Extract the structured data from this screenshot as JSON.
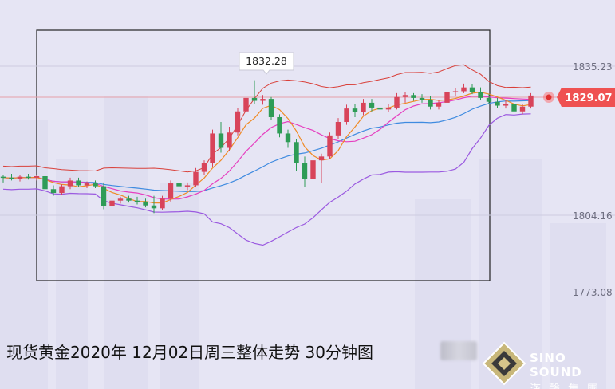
{
  "chart_data": {
    "type": "candlestick",
    "title": "现货黄金2020年 12月02日周三整体走势 30分钟图",
    "y_axis_labels": [
      "1835.23",
      "1804.16",
      "1773.08"
    ],
    "ylim": [
      1790,
      1842
    ],
    "max_label": "1832.28",
    "last_price": "1829.07",
    "candles": [
      [
        1812.2,
        1812.6,
        1811.0,
        1812.0
      ],
      [
        1812.0,
        1812.8,
        1811.4,
        1811.8
      ],
      [
        1811.8,
        1812.6,
        1811.2,
        1812.2
      ],
      [
        1812.2,
        1812.8,
        1811.6,
        1812.0
      ],
      [
        1812.0,
        1812.6,
        1811.4,
        1812.3
      ],
      [
        1812.3,
        1812.8,
        1809.0,
        1809.6
      ],
      [
        1809.6,
        1810.4,
        1808.2,
        1808.8
      ],
      [
        1808.8,
        1810.6,
        1808.4,
        1810.2
      ],
      [
        1810.2,
        1812.0,
        1809.6,
        1811.4
      ],
      [
        1811.4,
        1812.0,
        1810.0,
        1810.4
      ],
      [
        1810.4,
        1811.2,
        1809.8,
        1810.8
      ],
      [
        1810.8,
        1811.4,
        1809.8,
        1810.2
      ],
      [
        1810.2,
        1811.0,
        1805.4,
        1806.0
      ],
      [
        1806.0,
        1808.0,
        1805.4,
        1807.2
      ],
      [
        1807.2,
        1808.0,
        1806.6,
        1807.6
      ],
      [
        1807.6,
        1808.2,
        1806.8,
        1807.2
      ],
      [
        1807.2,
        1808.0,
        1806.4,
        1807.0
      ],
      [
        1807.0,
        1807.6,
        1805.8,
        1806.2
      ],
      [
        1806.2,
        1808.2,
        1804.6,
        1805.6
      ],
      [
        1805.6,
        1808.2,
        1805.2,
        1807.6
      ],
      [
        1807.6,
        1811.4,
        1807.0,
        1810.8
      ],
      [
        1810.8,
        1812.0,
        1809.8,
        1810.2
      ],
      [
        1810.2,
        1811.0,
        1809.4,
        1810.4
      ],
      [
        1810.4,
        1814.0,
        1810.0,
        1813.2
      ],
      [
        1813.2,
        1815.6,
        1812.6,
        1815.0
      ],
      [
        1815.0,
        1822.0,
        1814.2,
        1821.2
      ],
      [
        1821.2,
        1823.6,
        1817.2,
        1818.2
      ],
      [
        1818.2,
        1822.6,
        1817.6,
        1821.4
      ],
      [
        1821.4,
        1826.6,
        1820.8,
        1825.8
      ],
      [
        1825.8,
        1829.2,
        1825.2,
        1828.6
      ],
      [
        1828.6,
        1832.3,
        1827.4,
        1828.0
      ],
      [
        1828.0,
        1829.2,
        1827.2,
        1828.4
      ],
      [
        1828.4,
        1828.8,
        1824.0,
        1824.6
      ],
      [
        1824.6,
        1825.2,
        1820.4,
        1821.2
      ],
      [
        1821.2,
        1822.0,
        1818.2,
        1819.4
      ],
      [
        1819.4,
        1820.0,
        1813.4,
        1815.0
      ],
      [
        1815.0,
        1816.4,
        1810.0,
        1811.8
      ],
      [
        1811.8,
        1816.6,
        1810.6,
        1815.6
      ],
      [
        1815.6,
        1817.0,
        1810.8,
        1816.4
      ],
      [
        1816.4,
        1821.4,
        1815.8,
        1820.8
      ],
      [
        1820.8,
        1824.4,
        1820.0,
        1823.6
      ],
      [
        1823.6,
        1827.2,
        1823.0,
        1826.4
      ],
      [
        1826.4,
        1827.4,
        1824.6,
        1825.6
      ],
      [
        1825.6,
        1828.4,
        1825.0,
        1827.6
      ],
      [
        1827.6,
        1828.4,
        1825.8,
        1826.6
      ],
      [
        1826.6,
        1827.6,
        1825.0,
        1826.2
      ],
      [
        1826.2,
        1827.4,
        1825.6,
        1826.6
      ],
      [
        1826.6,
        1829.6,
        1826.2,
        1828.8
      ],
      [
        1828.8,
        1829.8,
        1827.6,
        1829.2
      ],
      [
        1829.2,
        1829.6,
        1828.0,
        1828.6
      ],
      [
        1828.6,
        1829.4,
        1827.6,
        1828.2
      ],
      [
        1828.2,
        1829.0,
        1826.2,
        1826.8
      ],
      [
        1826.8,
        1828.2,
        1826.2,
        1827.6
      ],
      [
        1827.6,
        1830.0,
        1827.2,
        1829.8
      ],
      [
        1829.8,
        1830.6,
        1829.0,
        1830.0
      ],
      [
        1830.0,
        1831.6,
        1829.6,
        1830.8
      ],
      [
        1830.8,
        1831.4,
        1829.4,
        1829.8
      ],
      [
        1829.8,
        1830.8,
        1828.2,
        1828.6
      ],
      [
        1828.6,
        1829.4,
        1827.4,
        1827.8
      ],
      [
        1827.8,
        1828.6,
        1826.6,
        1827.0
      ],
      [
        1827.0,
        1828.2,
        1826.4,
        1827.4
      ],
      [
        1827.4,
        1827.8,
        1825.4,
        1825.8
      ],
      [
        1825.8,
        1827.4,
        1825.2,
        1826.8
      ],
      [
        1826.8,
        1829.6,
        1826.4,
        1829.1
      ]
    ],
    "series_colors": {
      "candle_up": "#d8445a",
      "candle_down": "#2e9c56",
      "boll_upper": "#d9403a",
      "boll_lower": "#9b5ae0",
      "ma_fast": "#f08a24",
      "ma_mid": "#e63fc0",
      "ma_slow": "#3f8be0"
    }
  }
}
